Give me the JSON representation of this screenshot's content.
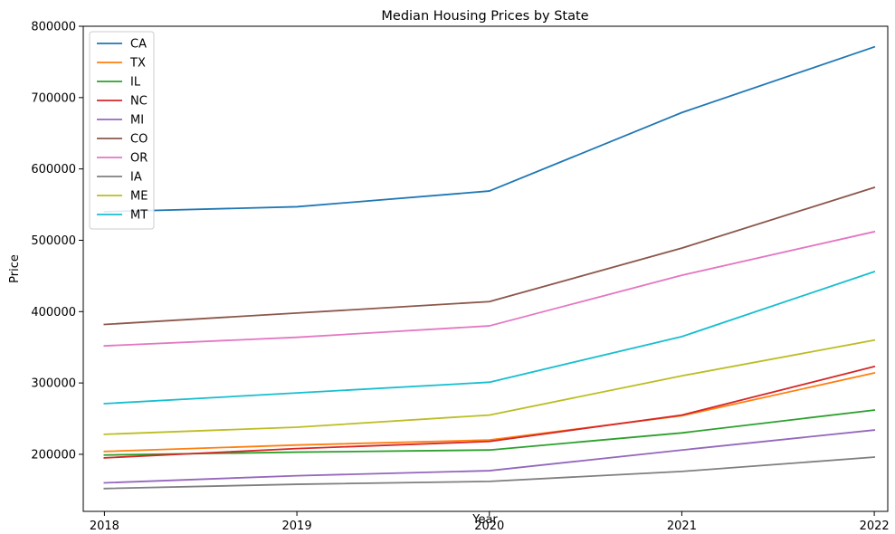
{
  "chart_data": {
    "type": "line",
    "title": "Median Housing Prices by State",
    "xlabel": "Year",
    "ylabel": "Price",
    "x": [
      "2018",
      "2019",
      "2020",
      "2021",
      "2022"
    ],
    "xlim": [
      2017.89,
      2022.07
    ],
    "ylim": [
      120000,
      800000
    ],
    "yticks": [
      200000,
      300000,
      400000,
      500000,
      600000,
      700000,
      800000
    ],
    "grid": false,
    "legend": "top-left",
    "series": [
      {
        "name": "CA",
        "color": "#1f77b4",
        "values": [
          540000,
          547000,
          569000,
          679000,
          771000
        ]
      },
      {
        "name": "TX",
        "color": "#ff7f0e",
        "values": [
          204000,
          213000,
          220000,
          254000,
          314000
        ]
      },
      {
        "name": "IL",
        "color": "#2ca02c",
        "values": [
          199000,
          203000,
          206000,
          230000,
          262000
        ]
      },
      {
        "name": "NC",
        "color": "#d62728",
        "values": [
          195000,
          208000,
          218000,
          255000,
          323000
        ]
      },
      {
        "name": "MI",
        "color": "#9467bd",
        "values": [
          160000,
          170000,
          177000,
          206000,
          234000
        ]
      },
      {
        "name": "CO",
        "color": "#8c564b",
        "values": [
          382000,
          398000,
          414000,
          489000,
          574000
        ]
      },
      {
        "name": "OR",
        "color": "#e377c2",
        "values": [
          352000,
          364000,
          380000,
          451000,
          512000
        ]
      },
      {
        "name": "IA",
        "color": "#7f7f7f",
        "values": [
          152000,
          158000,
          162000,
          176000,
          196000
        ]
      },
      {
        "name": "ME",
        "color": "#bcbd22",
        "values": [
          228000,
          238000,
          255000,
          310000,
          360000
        ]
      },
      {
        "name": "MT",
        "color": "#17becf",
        "values": [
          271000,
          286000,
          301000,
          365000,
          456000
        ]
      }
    ]
  }
}
